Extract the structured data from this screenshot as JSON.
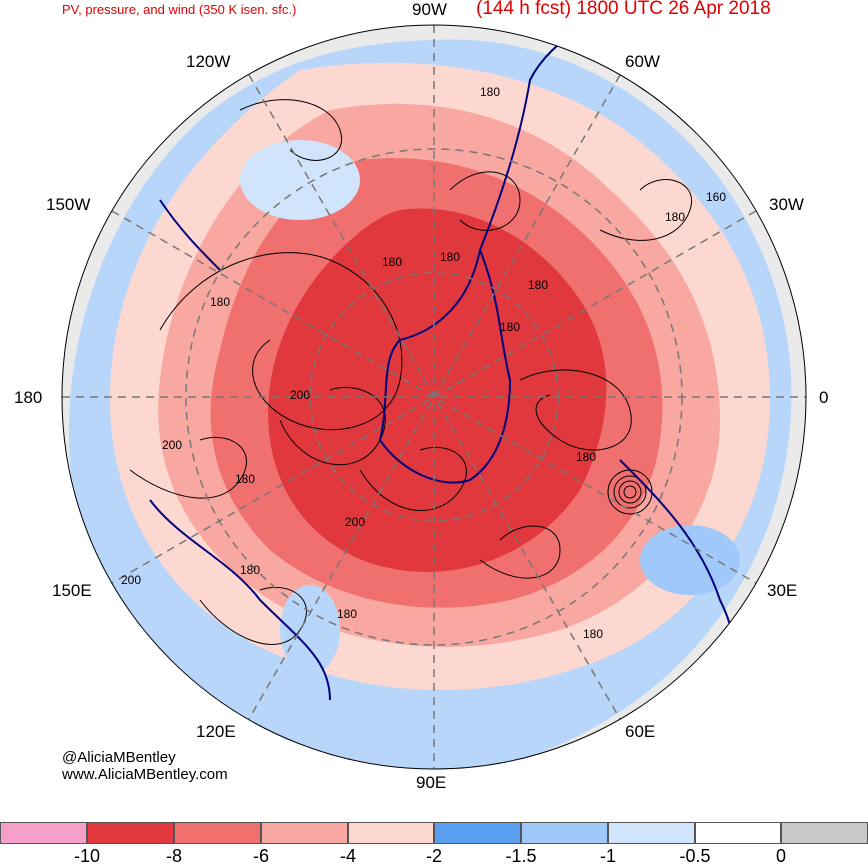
{
  "header": {
    "title_left": "PV, pressure, and wind (350 K isen. sfc.)",
    "title_right": "(144 h fcst) 1800 UTC 26 Apr 2018"
  },
  "longitude_labels": {
    "n": "90W",
    "nne": "60W",
    "ne": "30W",
    "e": "0",
    "se": "30E",
    "sse": "60E",
    "s": "90E",
    "ssw": "120E",
    "sw": "150E",
    "w": "180",
    "nw": "150W",
    "nnw": "120W"
  },
  "contour_labels": [
    "180",
    "180",
    "180",
    "180",
    "180",
    "160",
    "180",
    "200",
    "180",
    "200",
    "180",
    "200",
    "200",
    "180",
    "180",
    "180",
    "180"
  ],
  "credits": {
    "handle": "@AliciaMBentley",
    "website": "www.AliciaMBentley.com"
  },
  "colorbar": {
    "colors": [
      "#f5a0c8",
      "#e0383c",
      "#f07070",
      "#f8a8a0",
      "#fcd8d0",
      "#5aa0f0",
      "#a0c8f8",
      "#d0e4fc",
      "#ffffff",
      "#c8c8c8"
    ],
    "tick_labels": [
      "-10",
      "-8",
      "-6",
      "-4",
      "-2",
      "-1.5",
      "-1",
      "-0.5",
      "0"
    ]
  },
  "colors": {
    "title": "#e00000",
    "coast": "#000080",
    "strong_pv": "#e0383c",
    "mid_pv": "#f07070",
    "light_pv": "#f8a8a0",
    "pale_pv": "#fcd8d0",
    "blue_pv": "#a0c8f8",
    "gray_pv": "#c8c8c8"
  }
}
